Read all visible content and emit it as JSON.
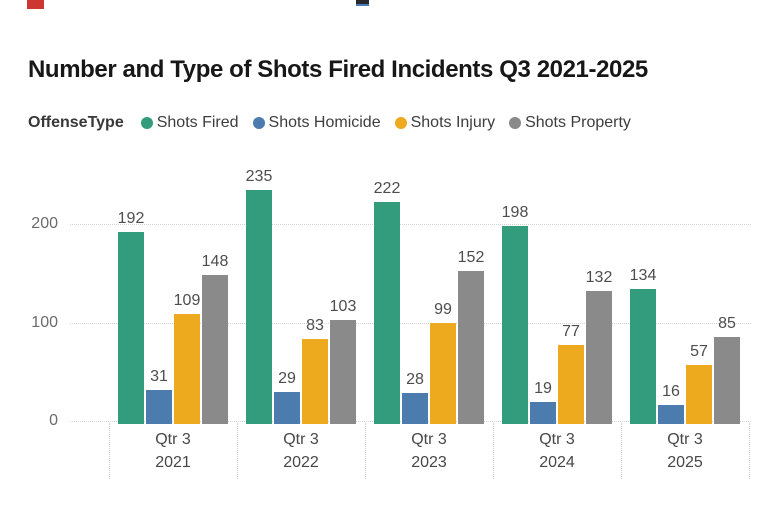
{
  "page": {
    "artifact_red_color": "#ce3731",
    "artifact_dark_color": "#27272e"
  },
  "chart_data": {
    "type": "bar",
    "title": "Number and Type of Shots Fired Incidents Q3 2021-2025",
    "legend_title": "OffenseType",
    "legend_position": "top",
    "grid": "horizontal-dotted",
    "categories": [
      {
        "line1": "Qtr 3",
        "line2": "2021"
      },
      {
        "line1": "Qtr 3",
        "line2": "2022"
      },
      {
        "line1": "Qtr 3",
        "line2": "2023"
      },
      {
        "line1": "Qtr 3",
        "line2": "2024"
      },
      {
        "line1": "Qtr 3",
        "line2": "2025"
      }
    ],
    "series": [
      {
        "name": "Shots Fired",
        "color": "#339c7c",
        "values": [
          192,
          235,
          222,
          198,
          134
        ]
      },
      {
        "name": "Shots Homicide",
        "color": "#4c7bae",
        "values": [
          31,
          29,
          28,
          19,
          16
        ]
      },
      {
        "name": "Shots Injury",
        "color": "#edaa1e",
        "values": [
          109,
          83,
          99,
          77,
          57
        ]
      },
      {
        "name": "Shots Property",
        "color": "#8a8a8a",
        "values": [
          148,
          103,
          152,
          132,
          85
        ]
      }
    ],
    "y_axis": {
      "ticks": [
        0,
        100,
        200
      ]
    },
    "data_labels": true
  }
}
